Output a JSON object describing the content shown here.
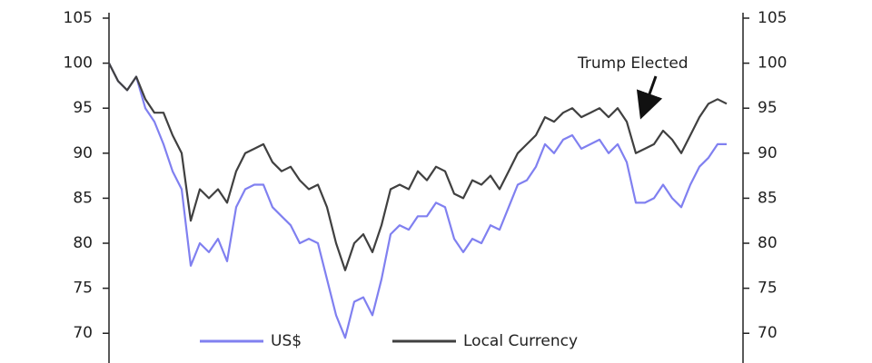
{
  "chart_data": {
    "type": "line",
    "x": [
      0,
      1,
      2,
      3,
      4,
      5,
      6,
      7,
      8,
      9,
      10,
      11,
      12,
      13,
      14,
      15,
      16,
      17,
      18,
      19,
      20,
      21,
      22,
      23,
      24,
      25,
      26,
      27,
      28,
      29,
      30,
      31,
      32,
      33,
      34,
      35,
      36,
      37,
      38,
      39,
      40,
      41,
      42,
      43,
      44,
      45,
      46,
      47,
      48,
      49,
      50,
      51,
      52,
      53,
      54,
      55,
      56,
      57,
      58,
      59,
      60,
      61,
      62,
      63,
      64,
      65,
      66,
      67,
      68
    ],
    "xlim": [
      0,
      68
    ],
    "series": [
      {
        "name": "US$",
        "color": "#8080f0",
        "values": [
          100,
          98,
          97,
          98.5,
          95,
          93.5,
          91,
          88,
          86,
          77.5,
          80,
          79,
          80.5,
          78,
          84,
          86,
          86.5,
          86.5,
          84,
          83,
          82,
          80,
          80.5,
          80,
          76,
          72,
          69.5,
          73.5,
          74,
          72,
          76,
          81,
          82,
          81.5,
          83,
          83,
          84.5,
          84,
          80.5,
          79,
          80.5,
          80,
          82,
          81.5,
          84,
          86.5,
          87,
          88.5,
          91,
          90,
          91.5,
          92,
          90.5,
          91,
          91.5,
          90,
          91,
          89,
          84.5,
          84.5,
          85,
          86.5,
          85,
          84,
          86.5,
          88.5,
          89.5,
          91,
          91
        ]
      },
      {
        "name": "Local Currency",
        "color": "#404040",
        "values": [
          100,
          98,
          97,
          98.5,
          96,
          94.5,
          94.5,
          92,
          90,
          82.5,
          86,
          85,
          86,
          84.5,
          88,
          90,
          90.5,
          91,
          89,
          88,
          88.5,
          87,
          86,
          86.5,
          84,
          80,
          77,
          80,
          81,
          79,
          82,
          86,
          86.5,
          86,
          88,
          87,
          88.5,
          88,
          85.5,
          85,
          87,
          86.5,
          87.5,
          86,
          88,
          90,
          91,
          92,
          94,
          93.5,
          94.5,
          95,
          94,
          94.5,
          95,
          94,
          95,
          93.5,
          90,
          90.5,
          91,
          92.5,
          91.5,
          90,
          92,
          94,
          95.5,
          96,
          95.5
        ]
      }
    ],
    "ylim": [
      67,
      105
    ],
    "yticks": [
      70,
      75,
      80,
      85,
      90,
      95,
      100,
      105
    ],
    "y2lim": [
      67,
      105
    ],
    "y2ticks": [
      70,
      75,
      80,
      85,
      90,
      95,
      100,
      105
    ],
    "annotation": "Trump Elected"
  }
}
